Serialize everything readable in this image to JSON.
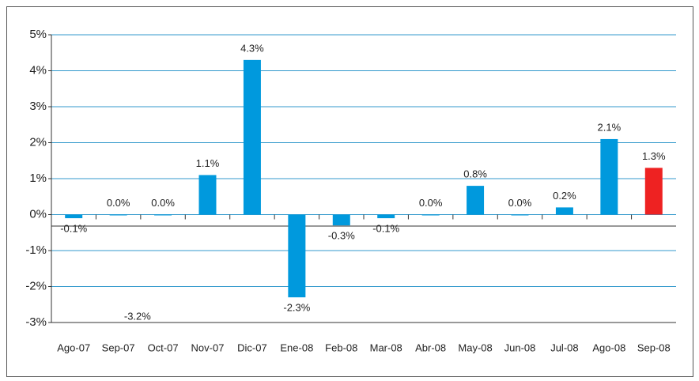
{
  "chart_data": {
    "type": "bar",
    "categories": [
      "Ago-07",
      "Sep-07",
      "Oct-07",
      "Nov-07",
      "Dic-07",
      "Ene-08",
      "Feb-08",
      "Mar-08",
      "Abr-08",
      "May-08",
      "Jun-08",
      "Jul-08",
      "Ago-08",
      "Sep-08"
    ],
    "values": [
      -0.1,
      0.0,
      0.0,
      1.1,
      4.3,
      -2.3,
      -0.3,
      -0.1,
      0.0,
      0.8,
      0.0,
      0.2,
      2.1,
      1.3
    ],
    "value_labels": [
      "-0.1%",
      "0.0%",
      "0.0%",
      "1.1%",
      "4.3%",
      "-2.3%",
      "-0.3%",
      "-0.1%",
      "0.0%",
      "0.8%",
      "0.0%",
      "0.2%",
      "2.1%",
      "1.3%"
    ],
    "colors": [
      "#0099dd",
      "#0099dd",
      "#0099dd",
      "#0099dd",
      "#0099dd",
      "#0099dd",
      "#0099dd",
      "#0099dd",
      "#0099dd",
      "#0099dd",
      "#0099dd",
      "#0099dd",
      "#0099dd",
      "#ee2222"
    ],
    "annotations": [
      "-3.2%"
    ],
    "ylim": [
      -3,
      5
    ],
    "yticks": [
      {
        "value": -3,
        "label": "-3%"
      },
      {
        "value": -2,
        "label": "-2%"
      },
      {
        "value": -1,
        "label": "-1%"
      },
      {
        "value": 0,
        "label": "0%"
      },
      {
        "value": 1,
        "label": "1%"
      },
      {
        "value": 2,
        "label": "2%"
      },
      {
        "value": 3,
        "label": "3%"
      },
      {
        "value": 4,
        "label": "4%"
      },
      {
        "value": 5,
        "label": "5%"
      }
    ],
    "grid": true
  }
}
